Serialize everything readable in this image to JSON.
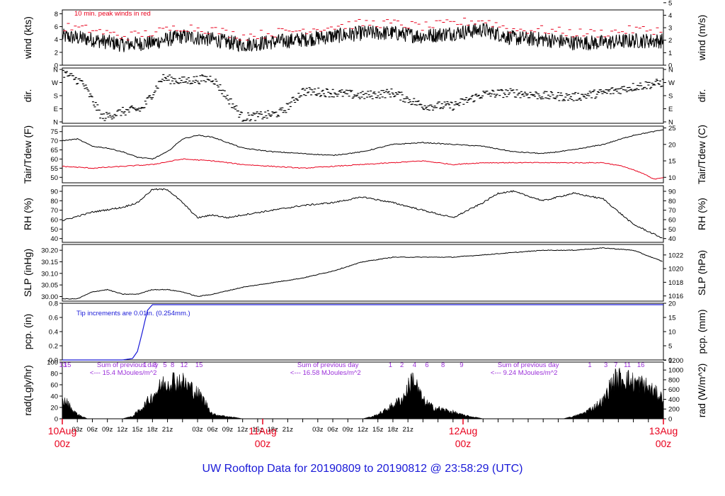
{
  "title": "UW Rooftop Data for 20190809  to  20190812 @ 23:58:29  (UTC)",
  "x_axis": {
    "hour_ticks": [
      "03z",
      "06z",
      "09z",
      "12z",
      "15z",
      "18z",
      "21z",
      "03z",
      "06z",
      "09z",
      "12z",
      "15z",
      "18z",
      "21z",
      "03z",
      "06z",
      "09z",
      "12z",
      "15z",
      "18z",
      "21z"
    ],
    "day_labels": [
      {
        "top": "10Aug",
        "bottom": "00z"
      },
      {
        "top": "11Aug",
        "bottom": "00z"
      },
      {
        "top": "12Aug",
        "bottom": "00z"
      },
      {
        "top": "13Aug",
        "bottom": "00z"
      }
    ]
  },
  "panels": {
    "wind": {
      "left_label": "wind (kts)",
      "right_label": "wind (m/s)",
      "annotation": "10 min. peak winds in red",
      "left_ticks": [
        "0",
        "2",
        "4",
        "6",
        "8"
      ],
      "right_ticks": [
        "0",
        "1",
        "2",
        "3",
        "4",
        "5"
      ]
    },
    "dir": {
      "left_label": "dir.",
      "right_label": "dir.",
      "ticks": [
        "N",
        "E",
        "S",
        "W",
        "N"
      ]
    },
    "temp": {
      "left_label": "Tair/Tdew (F)",
      "right_label": "Tair/Tdew (C)",
      "left_ticks": [
        "50",
        "55",
        "60",
        "65",
        "70",
        "75"
      ],
      "right_ticks": [
        "10",
        "15",
        "20",
        "25"
      ]
    },
    "rh": {
      "left_label": "RH (%)",
      "right_label": "RH (%)",
      "ticks": [
        "40",
        "50",
        "60",
        "70",
        "80",
        "90"
      ]
    },
    "slp": {
      "left_label": "SLP (inHg)",
      "right_label": "SLP (hPa)",
      "left_ticks": [
        "30.00",
        "30.05",
        "30.10",
        "30.15",
        "30.20"
      ],
      "right_ticks": [
        "1016",
        "1018",
        "1020",
        "1022"
      ]
    },
    "pcp": {
      "left_label": "pcp. (in)",
      "right_label": "pcp. (mm)",
      "annotation": "Tip increments are 0.01in. (0.254mm.)",
      "left_ticks": [
        "0.0",
        "0.2",
        "0.4",
        "0.6",
        "0.8"
      ],
      "right_ticks": [
        "0",
        "5",
        "10",
        "15",
        "20"
      ]
    },
    "rad": {
      "left_label": "rad(Lgly/hr)",
      "right_label": "rad (W/m^2)",
      "left_ticks": [
        "0",
        "20",
        "40",
        "60",
        "80",
        "100"
      ],
      "right_ticks": [
        "0",
        "200",
        "400",
        "600",
        "800",
        "1000",
        "1200"
      ],
      "hour_marks": [
        {
          "t": 0.12,
          "label": "13"
        },
        {
          "t": 1.0,
          "label": "15"
        },
        {
          "t": 16.5,
          "label": "1"
        },
        {
          "t": 18.5,
          "label": "3"
        },
        {
          "t": 20.5,
          "label": "5"
        },
        {
          "t": 22.0,
          "label": "8"
        },
        {
          "t": 24.3,
          "label": "12"
        },
        {
          "t": 27.3,
          "label": "15"
        },
        {
          "t": 65.5,
          "label": "1"
        },
        {
          "t": 67.8,
          "label": "2"
        },
        {
          "t": 70.3,
          "label": "4"
        },
        {
          "t": 72.8,
          "label": "6"
        },
        {
          "t": 76.0,
          "label": "8"
        },
        {
          "t": 79.7,
          "label": "9"
        },
        {
          "t": 105.3,
          "label": "1"
        },
        {
          "t": 108.5,
          "label": "3"
        },
        {
          "t": 110.5,
          "label": "7"
        },
        {
          "t": 112.8,
          "label": "11"
        },
        {
          "t": 115.5,
          "label": "16"
        }
      ],
      "daily_sums": [
        {
          "line1": "Sum of previous day",
          "line2": "<--- 15.4 MJoules/m^2"
        },
        {
          "line1": "Sum of previous day",
          "line2": "<--- 16.58 MJoules/m^2"
        },
        {
          "line1": "Sum of previous day",
          "line2": "<--- 9.24 MJoules/m^2"
        }
      ]
    }
  },
  "colors": {
    "obs": "#000000",
    "peak": "#e8001c",
    "dew": "#e8001c",
    "pcp": "#1a1ad8",
    "annotation": "#9b30d9",
    "title": "#1a1ad8",
    "day": "#e8001c"
  },
  "chart_data": [
    {
      "type": "line",
      "panel": "wind",
      "xlabel": "hours since 10Aug 00z",
      "ylabel": "wind (kts)",
      "ylim": [
        0,
        8.6
      ],
      "series": [
        {
          "name": "wind",
          "x": [
            0,
            6,
            12,
            18,
            24,
            30,
            36,
            42,
            48,
            54,
            60,
            66,
            72,
            78,
            84,
            90,
            96,
            102,
            108,
            114,
            120
          ],
          "values": [
            4.5,
            4.0,
            3.2,
            3.5,
            4.5,
            4.0,
            3.2,
            3.6,
            4.0,
            4.5,
            5.0,
            5.0,
            4.5,
            5.0,
            5.5,
            4.2,
            4.0,
            3.5,
            3.5,
            3.8,
            3.8
          ]
        },
        {
          "name": "10 min. peak winds",
          "x": [
            0,
            6,
            12,
            18,
            24,
            30,
            36,
            42,
            48,
            54,
            60,
            66,
            72,
            78,
            84,
            90,
            96,
            102,
            108,
            114,
            120
          ],
          "values": [
            6.0,
            5.5,
            4.5,
            5.0,
            6.0,
            5.5,
            4.5,
            5.0,
            5.5,
            6.0,
            6.5,
            6.5,
            6.0,
            6.5,
            7.0,
            5.5,
            5.5,
            5.0,
            5.0,
            5.5,
            5.5
          ]
        }
      ]
    },
    {
      "type": "scatter",
      "panel": "dir",
      "ylabel": "dir.",
      "categories_y": [
        "N",
        "E",
        "S",
        "W",
        "N"
      ],
      "series": [
        {
          "name": "direction (deg)",
          "x": [
            0,
            4,
            8,
            12,
            16,
            20,
            24,
            30,
            36,
            42,
            44,
            48,
            54,
            60,
            66,
            72,
            78,
            84,
            90,
            96,
            102,
            108,
            114,
            120
          ],
          "values": [
            340,
            270,
            30,
            70,
            90,
            300,
            280,
            300,
            30,
            50,
            70,
            210,
            200,
            180,
            200,
            110,
            110,
            190,
            200,
            180,
            170,
            200,
            240,
            270
          ]
        }
      ]
    },
    {
      "type": "line",
      "panel": "temp",
      "ylabel": "Tair/Tdew (F)",
      "ylim": [
        47,
        78
      ],
      "series": [
        {
          "name": "Tair",
          "x": [
            0,
            3,
            6,
            9,
            12,
            15,
            18,
            21,
            24,
            27,
            30,
            36,
            42,
            48,
            54,
            60,
            66,
            72,
            78,
            84,
            90,
            96,
            102,
            108,
            114,
            120
          ],
          "values": [
            70,
            71,
            67,
            66,
            64,
            61,
            60,
            64,
            71,
            73,
            72,
            66,
            64,
            63,
            62,
            64,
            68,
            69,
            68,
            67,
            64,
            63,
            65,
            68,
            73,
            76
          ]
        },
        {
          "name": "Tdew",
          "x": [
            0,
            6,
            12,
            18,
            24,
            30,
            36,
            42,
            48,
            54,
            60,
            66,
            72,
            78,
            84,
            90,
            96,
            102,
            108,
            112,
            116,
            118,
            120
          ],
          "values": [
            56,
            55,
            56,
            57,
            60,
            59,
            57,
            56,
            55,
            56,
            57,
            58,
            59,
            57,
            58,
            58,
            58,
            58,
            58,
            56,
            52,
            49,
            50
          ]
        }
      ]
    },
    {
      "type": "line",
      "panel": "rh",
      "ylabel": "RH (%)",
      "ylim": [
        36,
        96
      ],
      "series": [
        {
          "name": "RH",
          "x": [
            0,
            6,
            12,
            15,
            18,
            21,
            24,
            27,
            30,
            33,
            36,
            42,
            48,
            54,
            60,
            66,
            72,
            78,
            84,
            87,
            90,
            96,
            102,
            108,
            114,
            120
          ],
          "values": [
            59,
            68,
            73,
            78,
            92,
            92,
            78,
            62,
            65,
            62,
            65,
            70,
            75,
            78,
            84,
            78,
            70,
            62,
            78,
            88,
            90,
            80,
            88,
            82,
            55,
            40
          ]
        }
      ]
    },
    {
      "type": "line",
      "panel": "slp",
      "ylabel": "SLP (inHg)",
      "ylim": [
        29.98,
        30.225
      ],
      "series": [
        {
          "name": "SLP",
          "x": [
            0,
            3,
            6,
            9,
            12,
            15,
            18,
            21,
            24,
            27,
            30,
            36,
            42,
            48,
            54,
            60,
            66,
            72,
            78,
            84,
            90,
            96,
            102,
            108,
            114,
            120
          ],
          "values": [
            29.99,
            29.99,
            30.02,
            30.03,
            30.01,
            30.01,
            30.03,
            30.03,
            30.02,
            30.0,
            30.01,
            30.04,
            30.06,
            30.08,
            30.11,
            30.15,
            30.17,
            30.17,
            30.17,
            30.18,
            30.19,
            30.2,
            30.2,
            30.21,
            30.2,
            30.15
          ]
        }
      ]
    },
    {
      "type": "line",
      "panel": "pcp",
      "ylabel": "pcp. (in)",
      "ylim": [
        0,
        0.8
      ],
      "series": [
        {
          "name": "accumulated pcp",
          "x": [
            0,
            12,
            14,
            15,
            16,
            17,
            18,
            19,
            120
          ],
          "values": [
            0.0,
            0.0,
            0.02,
            0.12,
            0.4,
            0.7,
            0.78,
            0.78,
            0.78
          ]
        }
      ]
    },
    {
      "type": "area",
      "panel": "rad",
      "ylabel": "rad(Lgly/hr)",
      "ylim": [
        0,
        100
      ],
      "series": [
        {
          "name": "radiation",
          "x": [
            0,
            1,
            2,
            3,
            4,
            5,
            6,
            12,
            14,
            16,
            18,
            20,
            22,
            24,
            26,
            28,
            30,
            36,
            44,
            48,
            54,
            60,
            62,
            64,
            66,
            68,
            70,
            72,
            74,
            76,
            78,
            80,
            84,
            96,
            100,
            102,
            104,
            106,
            108,
            110,
            112,
            114,
            116,
            118,
            120
          ],
          "values": [
            40,
            35,
            20,
            10,
            5,
            0,
            0,
            0,
            5,
            25,
            50,
            75,
            85,
            80,
            65,
            45,
            10,
            0,
            0,
            0,
            0,
            0,
            5,
            15,
            30,
            45,
            90,
            40,
            25,
            20,
            15,
            8,
            0,
            0,
            0,
            5,
            12,
            25,
            40,
            85,
            90,
            80,
            75,
            60,
            45
          ]
        }
      ]
    }
  ]
}
